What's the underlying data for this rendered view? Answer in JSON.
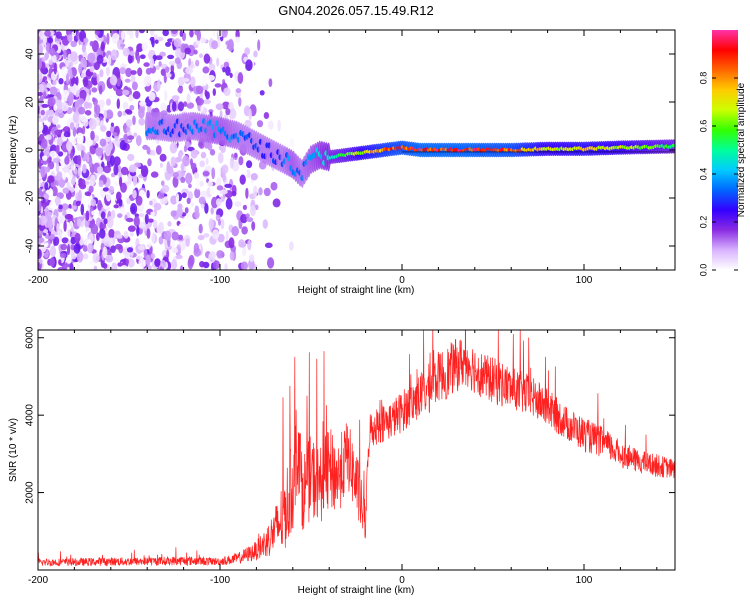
{
  "figure": {
    "title": "GN04.2026.057.15.49.R12"
  },
  "chart_data": [
    {
      "type": "heatmap",
      "title": "GN04.2026.057.15.49.R12",
      "xlabel": "Height of straight line (km)",
      "ylabel": "Frequency (Hz)",
      "xlim": [
        -200,
        150
      ],
      "ylim": [
        -50,
        50
      ],
      "xticks": [
        -200,
        -100,
        0,
        100
      ],
      "yticks": [
        -40,
        -20,
        0,
        20,
        40
      ],
      "colorbar": {
        "label": "Normalized spectral amplitude",
        "range": [
          0,
          1
        ],
        "ticks": [
          0.0,
          0.2,
          0.4,
          0.6,
          0.8
        ],
        "colormap": [
          "#ffffff",
          "#d9b3ff",
          "#8a2be2",
          "#3300ff",
          "#0066ff",
          "#00ccff",
          "#00ff99",
          "#33ff00",
          "#ccff00",
          "#ffcc00",
          "#ff6600",
          "#ff0000",
          "#ff33aa"
        ]
      },
      "ridge": {
        "x": [
          -135,
          -125,
          -115,
          -100,
          -90,
          -80,
          -70,
          -60,
          -55,
          -50,
          -45,
          -40,
          -30,
          -20,
          -10,
          0,
          10,
          30,
          60,
          80,
          100,
          120,
          150
        ],
        "y": [
          10,
          9,
          10,
          8,
          6,
          2,
          -2,
          -6,
          -10,
          -4,
          -2,
          -3,
          -2,
          -1,
          0,
          1,
          0,
          0,
          0,
          0.5,
          0.5,
          1,
          1.5
        ],
        "amplitude": [
          0.35,
          0.3,
          0.35,
          0.4,
          0.35,
          0.3,
          0.3,
          0.4,
          0.35,
          0.4,
          0.45,
          0.5,
          0.6,
          0.75,
          0.85,
          0.9,
          0.95,
          0.95,
          0.9,
          0.7,
          0.75,
          0.7,
          0.55
        ]
      },
      "grid": false
    },
    {
      "type": "line",
      "xlabel": "Height of straight line (km)",
      "ylabel": "SNR (10 * v/v)",
      "xlim": [
        -200,
        150
      ],
      "ylim": [
        0,
        6200
      ],
      "xticks": [
        -200,
        -100,
        0,
        100
      ],
      "yticks": [
        2000,
        4000,
        6000
      ],
      "color": "#ff2020",
      "series": [
        {
          "x": [
            -200,
            -180,
            -160,
            -140,
            -120,
            -100,
            -90,
            -80,
            -75,
            -70,
            -65,
            -60,
            -57,
            -55,
            -50,
            -45,
            -40,
            -35,
            -30,
            -25,
            -20,
            -18,
            -15,
            -10,
            -5,
            0,
            5,
            10,
            15,
            20,
            25,
            30,
            35,
            40,
            45,
            50,
            55,
            60,
            70,
            80,
            90,
            100,
            110,
            120,
            130,
            140,
            150
          ],
          "y": [
            200,
            200,
            220,
            220,
            240,
            220,
            300,
            500,
            700,
            1000,
            1400,
            2200,
            3500,
            2000,
            2400,
            2200,
            2600,
            2400,
            3000,
            2200,
            1200,
            3600,
            3700,
            3800,
            3900,
            4100,
            4300,
            4500,
            4700,
            5000,
            5100,
            5300,
            5400,
            5200,
            5000,
            4900,
            4800,
            4700,
            4500,
            4200,
            3800,
            3500,
            3300,
            3000,
            2800,
            2700,
            2600
          ],
          "noise": [
            100,
            100,
            110,
            110,
            120,
            100,
            150,
            250,
            400,
            600,
            1000,
            1200,
            1400,
            1000,
            1100,
            1000,
            1100,
            1000,
            900,
            900,
            500,
            500,
            500,
            500,
            500,
            550,
            550,
            600,
            650,
            650,
            700,
            700,
            650,
            650,
            600,
            600,
            600,
            550,
            550,
            500,
            450,
            450,
            400,
            350,
            300,
            300,
            250
          ]
        }
      ],
      "grid": false
    }
  ]
}
